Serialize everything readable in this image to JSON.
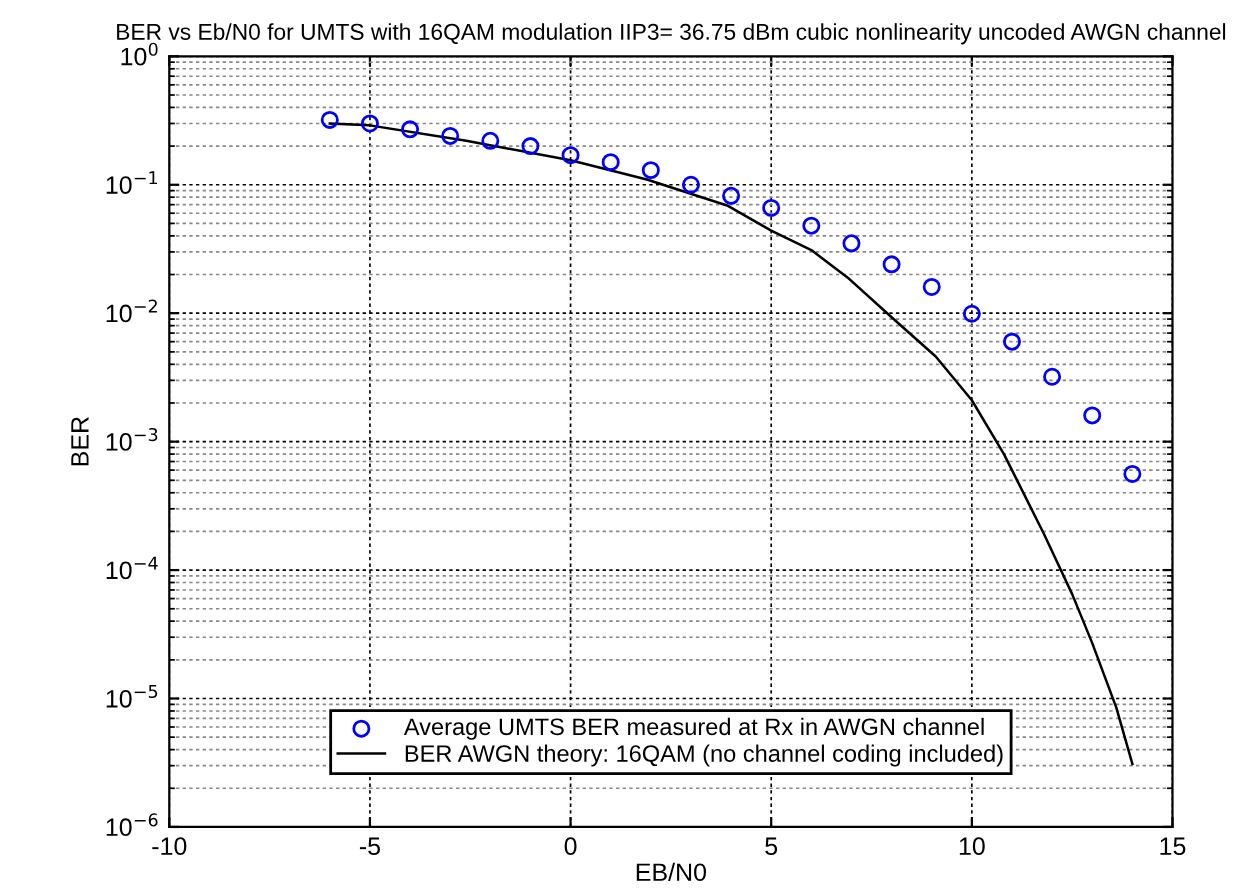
{
  "chart_data": {
    "type": "scatter",
    "title": "BER vs Eb/N0 for UMTS with 16QAM modulation IIP3= 36.75 dBm cubic nonlinearity uncoded AWGN channel",
    "xlabel": "EB/N0",
    "ylabel": "BER",
    "log": "y",
    "grid": true,
    "legend": "bottom",
    "xlim": [
      -10,
      15
    ],
    "xticks": [
      -10,
      -5,
      0,
      5,
      10,
      15
    ],
    "ylim": [
      1e-06,
      1
    ],
    "yticks": [
      {
        "value": 1e-06,
        "label": "10$^{−6}$"
      },
      {
        "value": 1e-05,
        "label": "10$^{−5}$"
      },
      {
        "value": 0.0001,
        "label": "10$^{−4}$"
      },
      {
        "value": 0.001,
        "label": "10$^{−3}$"
      },
      {
        "value": 0.01,
        "label": "10$^{−2}$"
      },
      {
        "value": 0.1,
        "label": "10$^{−1}$"
      },
      {
        "value": 1,
        "label": "10$^{0}$"
      }
    ],
    "series": [
      {
        "name": "Average UMTS BER measured at Rx in AWGN channel",
        "marker": "circle",
        "color": "#0000ff",
        "x": [
          -6,
          -5,
          -4,
          -3,
          -2,
          -1,
          0,
          1,
          2,
          3,
          4,
          5,
          6,
          7,
          8,
          9,
          10,
          11,
          12,
          13,
          14
        ],
        "values": [
          0.32,
          0.3,
          0.27,
          0.24,
          0.22,
          0.2,
          0.17,
          0.15,
          0.13,
          0.1,
          0.082,
          0.066,
          0.048,
          0.035,
          0.024,
          0.016,
          0.0099,
          0.006,
          0.0032,
          0.0016,
          0.00056
        ]
      },
      {
        "name": "BER AWGN theory: 16QAM (no channel coding included)",
        "type": "line",
        "line_style": "solid",
        "marker": "none",
        "color": "#000000",
        "x": [
          -6,
          -5,
          -2.6,
          0,
          1.9,
          3.9,
          5,
          6,
          6.9,
          8,
          9.1,
          10,
          10.8,
          11.8,
          12.5,
          13,
          13.6,
          14
        ],
        "values": [
          0.3,
          0.29,
          0.22,
          0.155,
          0.11,
          0.069,
          0.044,
          0.031,
          0.019,
          0.0093,
          0.0046,
          0.0021,
          0.0008,
          0.00019,
          6.5e-05,
          2.7e-05,
          8.5e-06,
          3.1e-06
        ]
      }
    ]
  }
}
